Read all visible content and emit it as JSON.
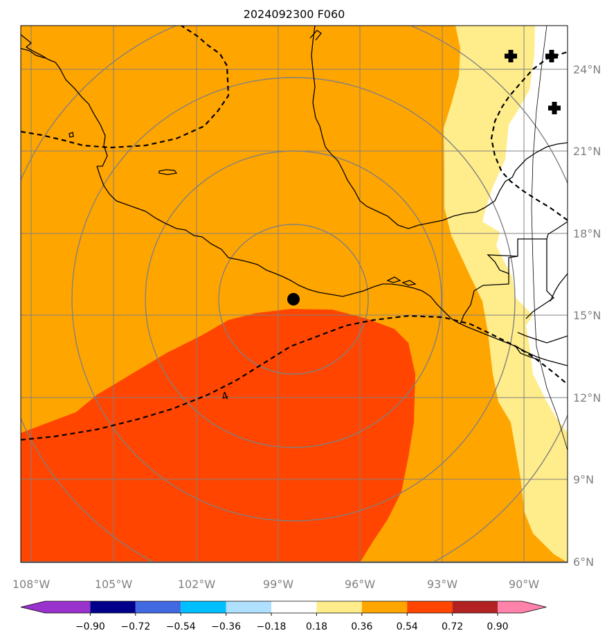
{
  "title": "2024092300 F060",
  "lon_labels": [
    "108°W",
    "105°W",
    "102°W",
    "99°W",
    "96°W",
    "93°W",
    "90°W"
  ],
  "lat_labels": [
    "24°N",
    "21°N",
    "18°N",
    "15°N",
    "12°N",
    "9°N",
    "6°N"
  ],
  "contour_label": "4",
  "colorbar": {
    "tick_labels": [
      "−0.90",
      "−0.72",
      "−0.54",
      "−0.36",
      "−0.18",
      "0.18",
      "0.36",
      "0.54",
      "0.72",
      "0.90"
    ],
    "colors": [
      "#9932cc",
      "#00008b",
      "#4169e1",
      "#00bfff",
      "#b0e0ff",
      "#ffffff",
      "#ffec8b",
      "#ffa500",
      "#ff4500",
      "#b22222",
      "#ff82ab"
    ]
  },
  "map": {
    "extent": {
      "lon": [
        -108.5,
        -88.6
      ],
      "lat": [
        5.7,
        25.1
      ]
    },
    "storm_center": {
      "lon": -98.4,
      "lat": 15.6
    },
    "range_rings_count": 4,
    "markers": "plus-marker",
    "shading_colors": {
      "level_0_36": "#ffec8b",
      "level_0_54": "#ffa500",
      "level_0_72": "#ff4500"
    }
  }
}
